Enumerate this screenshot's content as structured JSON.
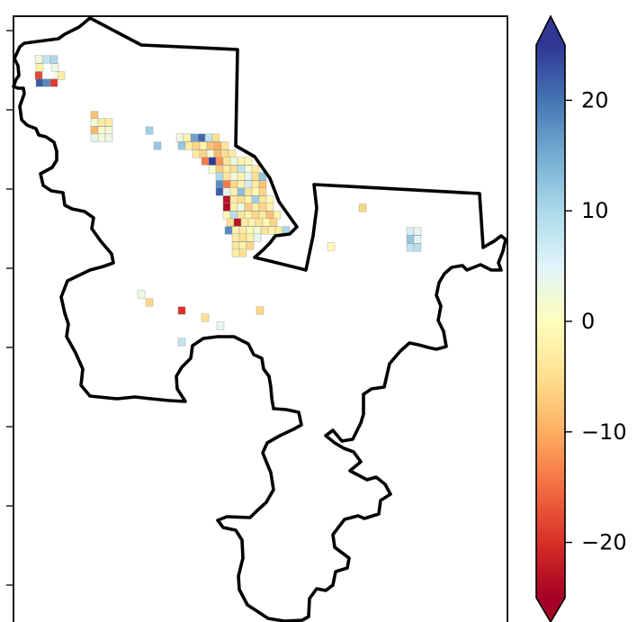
{
  "chart_data": {
    "type": "heatmap",
    "title": "",
    "xlabel": "",
    "ylabel": "",
    "colormap": "RdYlBu",
    "colorbar": {
      "vmin": -25,
      "vmax": 25,
      "extend": "both",
      "ticks": [
        {
          "value": 20,
          "label": "20"
        },
        {
          "value": 10,
          "label": "10"
        },
        {
          "value": 0,
          "label": "0"
        },
        {
          "value": -10,
          "label": "−10"
        },
        {
          "value": -20,
          "label": "−20"
        }
      ]
    },
    "map_cells": [
      {
        "lon": 43,
        "lat": 66,
        "value": 2
      },
      {
        "lon": 52,
        "lat": 66,
        "value": 8
      },
      {
        "lon": 60,
        "lat": 66,
        "value": 10
      },
      {
        "lon": 44,
        "lat": 75,
        "value": -2
      },
      {
        "lon": 61,
        "lat": 75,
        "value": 3
      },
      {
        "lon": 43,
        "lat": 84,
        "value": -18
      },
      {
        "lon": 68,
        "lat": 84,
        "value": -3
      },
      {
        "lon": 44,
        "lat": 92,
        "value": 22
      },
      {
        "lon": 52,
        "lat": 92,
        "value": 18
      },
      {
        "lon": 60,
        "lat": 92,
        "value": -19
      },
      {
        "lon": 105,
        "lat": 128,
        "value": -8
      },
      {
        "lon": 105,
        "lat": 136,
        "value": 2
      },
      {
        "lon": 113,
        "lat": 136,
        "value": -3
      },
      {
        "lon": 121,
        "lat": 136,
        "value": -3
      },
      {
        "lon": 105,
        "lat": 145,
        "value": -9
      },
      {
        "lon": 113,
        "lat": 145,
        "value": 1
      },
      {
        "lon": 121,
        "lat": 145,
        "value": 2
      },
      {
        "lon": 105,
        "lat": 153,
        "value": 4
      },
      {
        "lon": 113,
        "lat": 153,
        "value": 2
      },
      {
        "lon": 121,
        "lat": 153,
        "value": 3
      },
      {
        "lon": 166,
        "lat": 145,
        "value": 11
      },
      {
        "lon": 175,
        "lat": 162,
        "value": 12
      },
      {
        "lon": 200,
        "lat": 153,
        "value": 3
      },
      {
        "lon": 208,
        "lat": 153,
        "value": -2
      },
      {
        "lon": 216,
        "lat": 153,
        "value": 16
      },
      {
        "lon": 224,
        "lat": 153,
        "value": 21
      },
      {
        "lon": 232,
        "lat": 153,
        "value": 8
      },
      {
        "lon": 240,
        "lat": 153,
        "value": -5
      },
      {
        "lon": 202,
        "lat": 162,
        "value": 12
      },
      {
        "lon": 210,
        "lat": 162,
        "value": -3
      },
      {
        "lon": 218,
        "lat": 162,
        "value": -6
      },
      {
        "lon": 226,
        "lat": 162,
        "value": -2
      },
      {
        "lon": 234,
        "lat": 162,
        "value": -8
      },
      {
        "lon": 242,
        "lat": 162,
        "value": -10
      },
      {
        "lon": 250,
        "lat": 162,
        "value": -4
      },
      {
        "lon": 218,
        "lat": 171,
        "value": -3
      },
      {
        "lon": 226,
        "lat": 171,
        "value": -6
      },
      {
        "lon": 234,
        "lat": 171,
        "value": 2
      },
      {
        "lon": 242,
        "lat": 171,
        "value": -9
      },
      {
        "lon": 250,
        "lat": 171,
        "value": -5
      },
      {
        "lon": 258,
        "lat": 171,
        "value": -3
      },
      {
        "lon": 228,
        "lat": 179,
        "value": -14
      },
      {
        "lon": 236,
        "lat": 179,
        "value": 25
      },
      {
        "lon": 244,
        "lat": 179,
        "value": -12
      },
      {
        "lon": 252,
        "lat": 179,
        "value": -4
      },
      {
        "lon": 260,
        "lat": 179,
        "value": 3
      },
      {
        "lon": 268,
        "lat": 179,
        "value": -2
      },
      {
        "lon": 276,
        "lat": 179,
        "value": -1
      },
      {
        "lon": 236,
        "lat": 188,
        "value": 1
      },
      {
        "lon": 244,
        "lat": 188,
        "value": -7
      },
      {
        "lon": 252,
        "lat": 188,
        "value": -3
      },
      {
        "lon": 260,
        "lat": 188,
        "value": -5
      },
      {
        "lon": 268,
        "lat": 188,
        "value": 8
      },
      {
        "lon": 276,
        "lat": 188,
        "value": 2
      },
      {
        "lon": 284,
        "lat": 188,
        "value": -3
      },
      {
        "lon": 244,
        "lat": 196,
        "value": 10
      },
      {
        "lon": 252,
        "lat": 196,
        "value": -4
      },
      {
        "lon": 260,
        "lat": 196,
        "value": 2
      },
      {
        "lon": 268,
        "lat": 196,
        "value": -2
      },
      {
        "lon": 276,
        "lat": 196,
        "value": 4
      },
      {
        "lon": 284,
        "lat": 196,
        "value": -5
      },
      {
        "lon": 292,
        "lat": 196,
        "value": 12
      },
      {
        "lon": 244,
        "lat": 205,
        "value": 18
      },
      {
        "lon": 252,
        "lat": 205,
        "value": -14
      },
      {
        "lon": 260,
        "lat": 205,
        "value": -6
      },
      {
        "lon": 268,
        "lat": 205,
        "value": -2
      },
      {
        "lon": 276,
        "lat": 205,
        "value": 6
      },
      {
        "lon": 284,
        "lat": 205,
        "value": -3
      },
      {
        "lon": 292,
        "lat": 205,
        "value": -8
      },
      {
        "lon": 244,
        "lat": 213,
        "value": 22
      },
      {
        "lon": 252,
        "lat": 213,
        "value": 4
      },
      {
        "lon": 260,
        "lat": 213,
        "value": -2
      },
      {
        "lon": 268,
        "lat": 213,
        "value": 13
      },
      {
        "lon": 276,
        "lat": 213,
        "value": -4
      },
      {
        "lon": 284,
        "lat": 213,
        "value": -1
      },
      {
        "lon": 292,
        "lat": 213,
        "value": -6
      },
      {
        "lon": 252,
        "lat": 222,
        "value": -23
      },
      {
        "lon": 260,
        "lat": 222,
        "value": -3
      },
      {
        "lon": 268,
        "lat": 222,
        "value": -5
      },
      {
        "lon": 276,
        "lat": 222,
        "value": -2
      },
      {
        "lon": 284,
        "lat": 222,
        "value": 11
      },
      {
        "lon": 292,
        "lat": 222,
        "value": -4
      },
      {
        "lon": 300,
        "lat": 222,
        "value": -1
      },
      {
        "lon": 252,
        "lat": 230,
        "value": -24
      },
      {
        "lon": 260,
        "lat": 230,
        "value": -2
      },
      {
        "lon": 268,
        "lat": 230,
        "value": 3
      },
      {
        "lon": 276,
        "lat": 230,
        "value": -7
      },
      {
        "lon": 284,
        "lat": 230,
        "value": -3
      },
      {
        "lon": 292,
        "lat": 230,
        "value": -6
      },
      {
        "lon": 300,
        "lat": 230,
        "value": -2
      },
      {
        "lon": 252,
        "lat": 239,
        "value": -1
      },
      {
        "lon": 260,
        "lat": 239,
        "value": 9
      },
      {
        "lon": 268,
        "lat": 239,
        "value": -4
      },
      {
        "lon": 276,
        "lat": 239,
        "value": -2
      },
      {
        "lon": 284,
        "lat": 239,
        "value": -6
      },
      {
        "lon": 292,
        "lat": 239,
        "value": -3
      },
      {
        "lon": 300,
        "lat": 239,
        "value": -8
      },
      {
        "lon": 308,
        "lat": 239,
        "value": -2
      },
      {
        "lon": 256,
        "lat": 247,
        "value": -5
      },
      {
        "lon": 264,
        "lat": 247,
        "value": -23
      },
      {
        "lon": 272,
        "lat": 247,
        "value": -3
      },
      {
        "lon": 280,
        "lat": 247,
        "value": -2
      },
      {
        "lon": 288,
        "lat": 247,
        "value": -4
      },
      {
        "lon": 296,
        "lat": 247,
        "value": -1
      },
      {
        "lon": 304,
        "lat": 247,
        "value": -6
      },
      {
        "lon": 254,
        "lat": 256,
        "value": 18
      },
      {
        "lon": 262,
        "lat": 256,
        "value": -2
      },
      {
        "lon": 270,
        "lat": 256,
        "value": -3
      },
      {
        "lon": 278,
        "lat": 256,
        "value": -1
      },
      {
        "lon": 286,
        "lat": 256,
        "value": 2
      },
      {
        "lon": 294,
        "lat": 256,
        "value": -4
      },
      {
        "lon": 302,
        "lat": 256,
        "value": -2
      },
      {
        "lon": 310,
        "lat": 256,
        "value": -3
      },
      {
        "lon": 318,
        "lat": 256,
        "value": 10
      },
      {
        "lon": 262,
        "lat": 264,
        "value": -3
      },
      {
        "lon": 270,
        "lat": 264,
        "value": -5
      },
      {
        "lon": 278,
        "lat": 264,
        "value": -2
      },
      {
        "lon": 286,
        "lat": 264,
        "value": 4
      },
      {
        "lon": 262,
        "lat": 273,
        "value": -4
      },
      {
        "lon": 270,
        "lat": 273,
        "value": -2
      },
      {
        "lon": 278,
        "lat": 273,
        "value": -6
      },
      {
        "lon": 262,
        "lat": 281,
        "value": -3
      },
      {
        "lon": 270,
        "lat": 281,
        "value": -5
      },
      {
        "lon": 403,
        "lat": 231,
        "value": -6
      },
      {
        "lon": 368,
        "lat": 274,
        "value": -1
      },
      {
        "lon": 456,
        "lat": 257,
        "value": 6
      },
      {
        "lon": 464,
        "lat": 257,
        "value": 4
      },
      {
        "lon": 456,
        "lat": 266,
        "value": 12
      },
      {
        "lon": 464,
        "lat": 266,
        "value": 5
      },
      {
        "lon": 456,
        "lat": 275,
        "value": 8
      },
      {
        "lon": 464,
        "lat": 275,
        "value": 9
      },
      {
        "lon": 157,
        "lat": 327,
        "value": 3
      },
      {
        "lon": 166,
        "lat": 336,
        "value": -6
      },
      {
        "lon": 202,
        "lat": 345,
        "value": -20
      },
      {
        "lon": 228,
        "lat": 353,
        "value": -5
      },
      {
        "lon": 245,
        "lat": 362,
        "value": 4
      },
      {
        "lon": 289,
        "lat": 345,
        "value": -6
      },
      {
        "lon": 202,
        "lat": 380,
        "value": 8
      }
    ]
  }
}
